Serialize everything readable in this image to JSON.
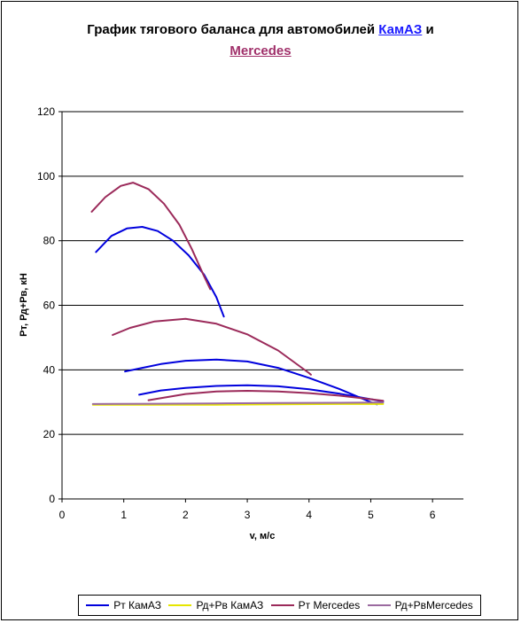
{
  "title": {
    "prefix": "График тягового баланса для автомобилей",
    "highlight1": "КамАЗ",
    "joiner": "и",
    "highlight2": "Mercedes"
  },
  "chart_data": {
    "type": "line",
    "xlabel": "v, м/с",
    "ylabel": "Рт, Рд+Рв, кН",
    "xlim": [
      0,
      6.5
    ],
    "ylim": [
      0,
      120
    ],
    "xticks": [
      0,
      1,
      2,
      3,
      4,
      5,
      6
    ],
    "yticks": [
      0,
      20,
      40,
      60,
      80,
      100,
      120
    ],
    "grid": true,
    "legend_position": "bottom",
    "series": [
      {
        "name": "Рт КамАЗ",
        "color": "#0000dd",
        "segments": [
          [
            [
              0.55,
              76.5
            ],
            [
              0.8,
              81.5
            ],
            [
              1.05,
              83.8
            ],
            [
              1.3,
              84.3
            ],
            [
              1.55,
              83.0
            ],
            [
              1.8,
              80.0
            ],
            [
              2.05,
              75.5
            ],
            [
              2.3,
              69.5
            ],
            [
              2.5,
              62.5
            ],
            [
              2.62,
              56.5
            ]
          ],
          [
            [
              1.02,
              39.5
            ],
            [
              1.3,
              40.6
            ],
            [
              1.6,
              41.8
            ],
            [
              2.0,
              42.8
            ],
            [
              2.5,
              43.2
            ],
            [
              3.0,
              42.6
            ],
            [
              3.5,
              40.6
            ],
            [
              4.0,
              37.5
            ],
            [
              4.5,
              34.0
            ],
            [
              5.0,
              30.0
            ],
            [
              5.1,
              29.3
            ]
          ],
          [
            [
              1.25,
              32.3
            ],
            [
              1.6,
              33.6
            ],
            [
              2.0,
              34.4
            ],
            [
              2.5,
              35.0
            ],
            [
              3.0,
              35.2
            ],
            [
              3.5,
              34.9
            ],
            [
              4.0,
              34.0
            ],
            [
              4.5,
              32.6
            ],
            [
              5.0,
              30.9
            ],
            [
              5.2,
              30.2
            ]
          ]
        ]
      },
      {
        "name": "Рд+Рв КамАЗ",
        "color": "#e6e600",
        "segments": [
          [
            [
              0.5,
              29.2
            ],
            [
              1.5,
              29.2
            ],
            [
              2.5,
              29.2
            ],
            [
              3.5,
              29.3
            ],
            [
              4.5,
              29.4
            ],
            [
              5.2,
              29.4
            ]
          ]
        ]
      },
      {
        "name": "Рт Mercedes",
        "color": "#9b2a5a",
        "segments": [
          [
            [
              0.48,
              89.0
            ],
            [
              0.7,
              93.5
            ],
            [
              0.95,
              97.0
            ],
            [
              1.15,
              98.0
            ],
            [
              1.4,
              96.0
            ],
            [
              1.65,
              91.5
            ],
            [
              1.9,
              85.0
            ],
            [
              2.1,
              77.5
            ],
            [
              2.3,
              69.0
            ],
            [
              2.4,
              65.0
            ]
          ],
          [
            [
              0.82,
              50.8
            ],
            [
              1.1,
              53.0
            ],
            [
              1.5,
              55.0
            ],
            [
              2.0,
              55.8
            ],
            [
              2.5,
              54.3
            ],
            [
              3.0,
              51.0
            ],
            [
              3.5,
              46.0
            ],
            [
              4.0,
              39.0
            ],
            [
              4.03,
              38.5
            ]
          ],
          [
            [
              1.4,
              30.6
            ],
            [
              2.0,
              32.5
            ],
            [
              2.5,
              33.3
            ],
            [
              3.0,
              33.5
            ],
            [
              3.5,
              33.3
            ],
            [
              4.0,
              32.8
            ],
            [
              4.5,
              32.0
            ],
            [
              5.0,
              30.9
            ],
            [
              5.2,
              30.4
            ]
          ]
        ]
      },
      {
        "name": "Рд+РвMercedes",
        "color": "#9b6aa0",
        "segments": [
          [
            [
              0.5,
              29.4
            ],
            [
              1.5,
              29.5
            ],
            [
              2.5,
              29.6
            ],
            [
              3.5,
              29.7
            ],
            [
              4.5,
              29.8
            ],
            [
              5.2,
              29.9
            ]
          ]
        ]
      }
    ]
  }
}
